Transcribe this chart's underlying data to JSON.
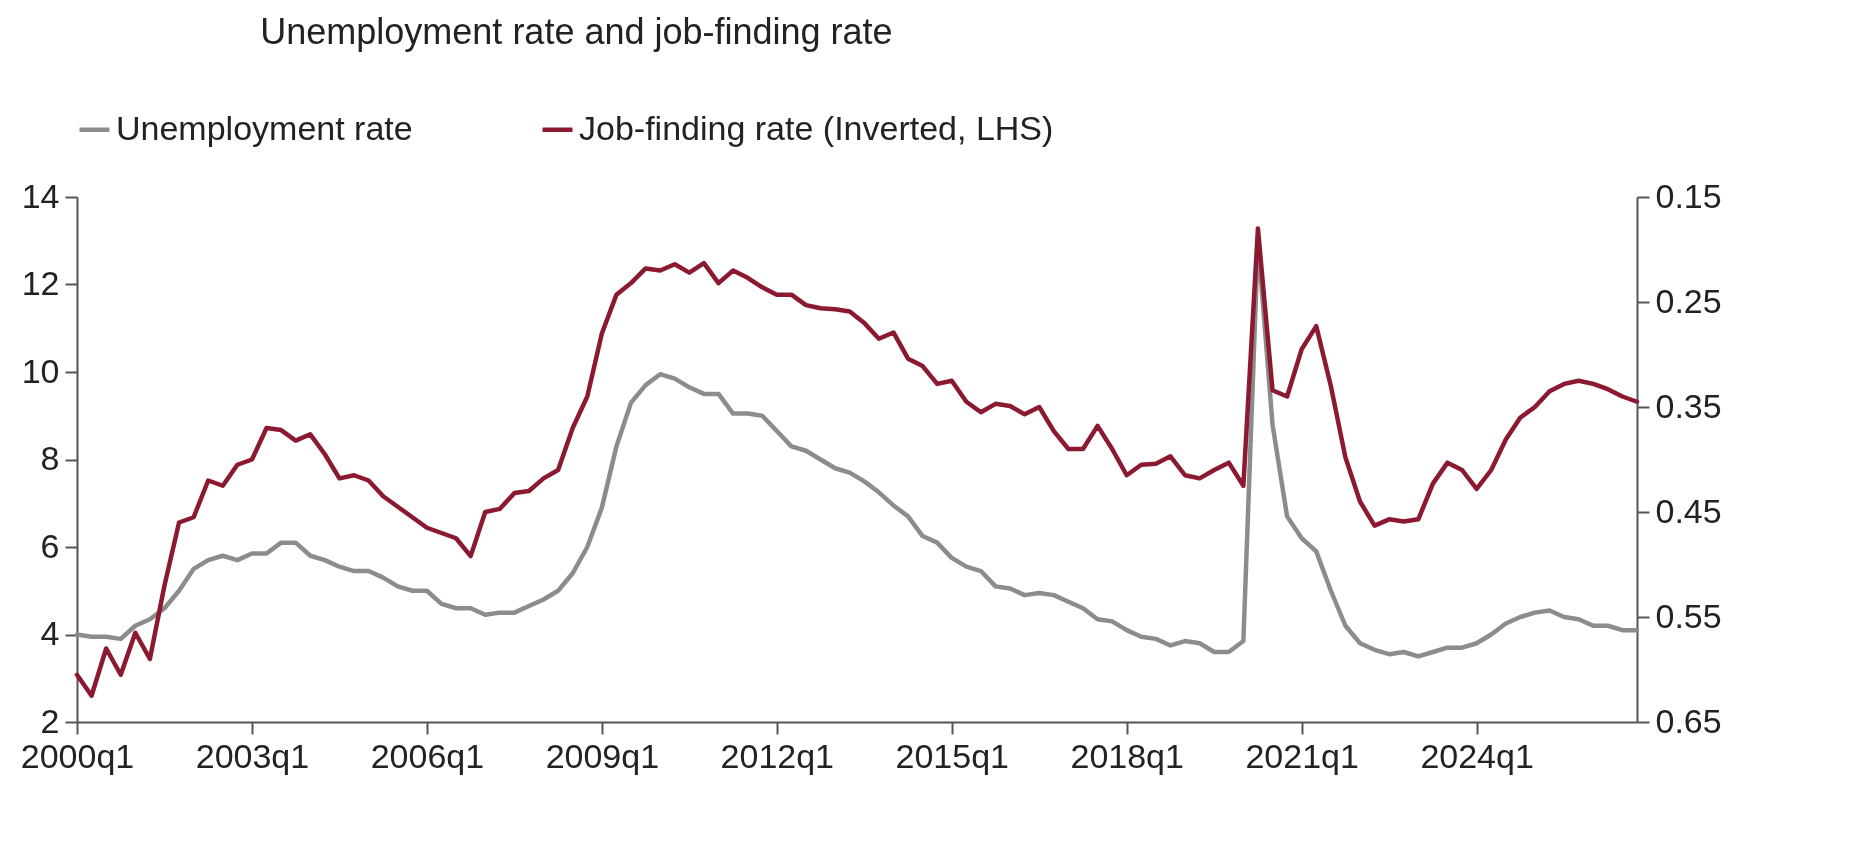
{
  "chart_data": {
    "type": "line",
    "title": "Unemployment rate and job-finding rate",
    "categories": [
      "2000q1",
      null,
      null,
      null,
      null,
      null,
      null,
      null,
      null,
      null,
      null,
      null,
      "2003q1",
      null,
      null,
      null,
      null,
      null,
      null,
      null,
      null,
      null,
      null,
      null,
      "2006q1",
      null,
      null,
      null,
      null,
      null,
      null,
      null,
      null,
      null,
      null,
      null,
      "2009q1",
      null,
      null,
      null,
      null,
      null,
      null,
      null,
      null,
      null,
      null,
      null,
      "2012q1",
      null,
      null,
      null,
      null,
      null,
      null,
      null,
      null,
      null,
      null,
      null,
      "2015q1",
      null,
      null,
      null,
      null,
      null,
      null,
      null,
      null,
      null,
      null,
      null,
      "2018q1",
      null,
      null,
      null,
      null,
      null,
      null,
      null,
      null,
      null,
      null,
      null,
      "2021q1",
      null,
      null,
      null,
      null,
      null,
      null,
      null,
      null,
      null,
      null,
      null,
      "2024q1",
      null,
      null,
      null,
      null,
      null,
      null,
      null,
      null,
      null,
      null,
      null
    ],
    "series": [
      {
        "name": "Unemployment rate",
        "color": "#8c8c8c",
        "values": [
          4.0,
          3.95,
          3.95,
          3.9,
          4.2,
          4.35,
          4.6,
          5.0,
          5.5,
          5.7,
          5.8,
          5.7,
          5.85,
          5.85,
          6.1,
          6.1,
          5.8,
          5.7,
          5.55,
          5.45,
          5.45,
          5.3,
          5.1,
          5.0,
          5.0,
          4.7,
          4.6,
          4.6,
          4.45,
          4.5,
          4.5,
          4.65,
          4.8,
          5.0,
          5.4,
          6.0,
          6.9,
          8.3,
          9.3,
          9.7,
          9.95,
          9.85,
          9.65,
          9.5,
          9.5,
          9.05,
          9.05,
          9.0,
          8.65,
          8.3,
          8.2,
          8.0,
          7.8,
          7.7,
          7.5,
          7.25,
          6.95,
          6.7,
          6.25,
          6.1,
          5.75,
          5.55,
          5.45,
          5.1,
          5.05,
          4.9,
          4.95,
          4.9,
          4.75,
          4.6,
          4.35,
          4.3,
          4.1,
          3.95,
          3.9,
          3.75,
          3.85,
          3.8,
          3.6,
          3.6,
          3.85,
          13.0,
          8.8,
          6.7,
          6.2,
          5.9,
          5.0,
          4.2,
          3.8,
          3.65,
          3.55,
          3.6,
          3.5,
          3.6,
          3.7,
          3.7,
          3.8,
          4.0,
          4.25,
          4.4,
          4.5,
          4.55,
          4.4,
          4.35,
          4.2,
          4.2,
          4.1,
          4.1
        ]
      },
      {
        "name": "Job-finding rate (Inverted, LHS)",
        "color": "#8b1a31",
        "axis": "y2",
        "values": [
          0.605,
          0.625,
          0.58,
          0.605,
          0.565,
          0.59,
          0.52,
          0.46,
          0.455,
          0.42,
          0.425,
          0.405,
          0.4,
          0.37,
          0.372,
          0.382,
          0.376,
          0.395,
          0.418,
          0.415,
          0.42,
          0.435,
          0.445,
          0.455,
          0.465,
          0.47,
          0.475,
          0.492,
          0.45,
          0.447,
          0.432,
          0.43,
          0.418,
          0.41,
          0.37,
          0.34,
          0.28,
          0.243,
          0.232,
          0.218,
          0.22,
          0.214,
          0.222,
          0.213,
          0.232,
          0.22,
          0.227,
          0.236,
          0.243,
          0.243,
          0.253,
          0.256,
          0.257,
          0.259,
          0.27,
          0.285,
          0.279,
          0.304,
          0.311,
          0.328,
          0.325,
          0.345,
          0.355,
          0.347,
          0.349,
          0.357,
          0.35,
          0.373,
          0.39,
          0.39,
          0.368,
          0.39,
          0.415,
          0.405,
          0.404,
          0.397,
          0.415,
          0.418,
          0.41,
          0.403,
          0.425,
          0.18,
          0.334,
          0.34,
          0.295,
          0.273,
          0.33,
          0.398,
          0.44,
          0.463,
          0.457,
          0.459,
          0.457,
          0.423,
          0.403,
          0.41,
          0.428,
          0.41,
          0.381,
          0.36,
          0.35,
          0.335,
          0.328,
          0.325,
          0.328,
          0.333,
          0.34,
          0.345
        ]
      }
    ],
    "ylim": [
      2,
      14
    ],
    "yticks": [
      2,
      4,
      6,
      8,
      10,
      12,
      14
    ],
    "y2lim": [
      0.65,
      0.15
    ],
    "y2ticks": [
      0.15,
      0.25,
      0.35,
      0.45,
      0.55,
      0.65
    ],
    "grid": false,
    "legend": "top",
    "marker": "none",
    "line_style": "solid"
  }
}
